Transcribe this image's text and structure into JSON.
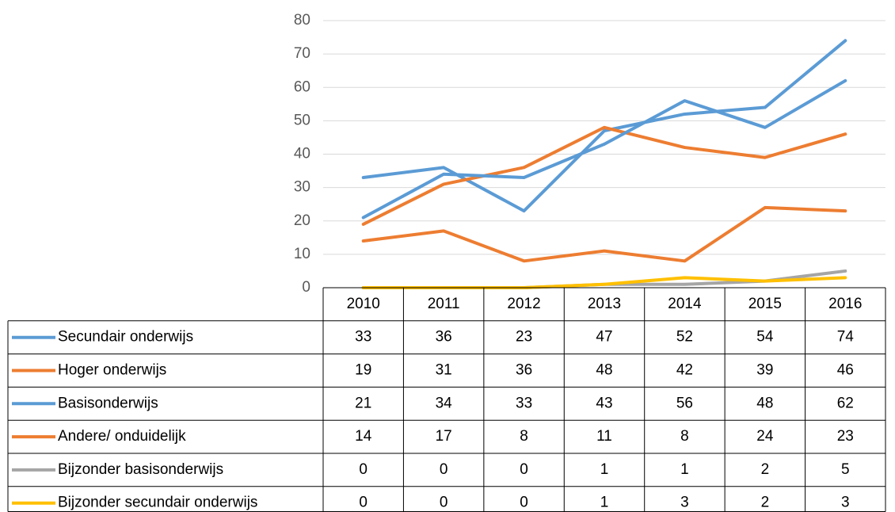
{
  "chart_data": {
    "type": "line",
    "categories": [
      "2010",
      "2011",
      "2012",
      "2013",
      "2014",
      "2015",
      "2016"
    ],
    "series": [
      {
        "name": "Secundair onderwijs",
        "color": "#5b9bd5",
        "values": [
          33,
          36,
          23,
          47,
          52,
          54,
          74
        ]
      },
      {
        "name": "Hoger onderwijs",
        "color": "#ed7d31",
        "values": [
          19,
          31,
          36,
          48,
          42,
          39,
          46
        ]
      },
      {
        "name": "Basisonderwijs",
        "color": "#5b9bd5",
        "values": [
          21,
          34,
          33,
          43,
          56,
          48,
          62
        ]
      },
      {
        "name": "Andere/ onduidelijk",
        "color": "#ed7d31",
        "values": [
          14,
          17,
          8,
          11,
          8,
          24,
          23
        ]
      },
      {
        "name": "Bijzonder basisonderwijs",
        "color": "#a5a5a5",
        "values": [
          0,
          0,
          0,
          1,
          1,
          2,
          5
        ]
      },
      {
        "name": "Bijzonder secundair onderwijs",
        "color": "#ffc000",
        "values": [
          0,
          0,
          0,
          1,
          3,
          2,
          3
        ]
      }
    ],
    "ylim": [
      0,
      80
    ],
    "yticks": [
      0,
      10,
      20,
      30,
      40,
      50,
      60,
      70,
      80
    ],
    "grid": true,
    "data_table": true
  }
}
